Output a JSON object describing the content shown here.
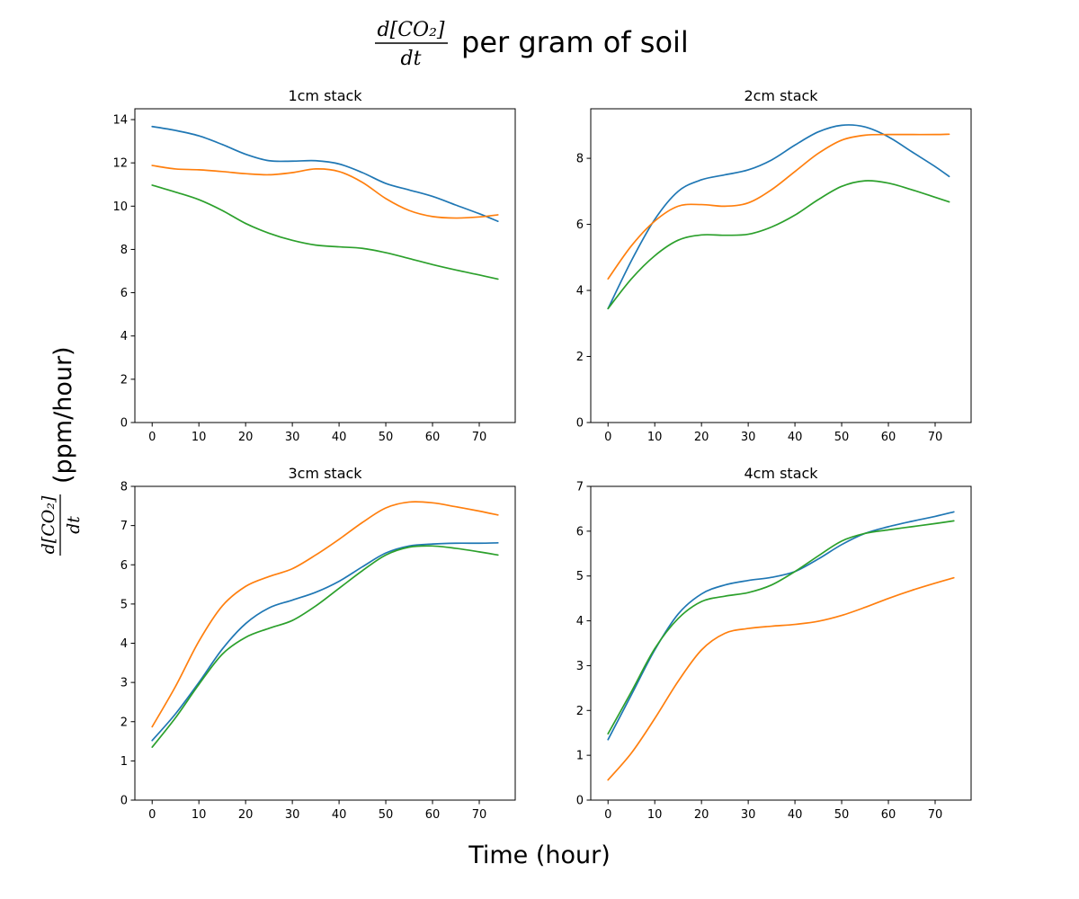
{
  "figure": {
    "suptitle": {
      "frac_numerator": "d[CO₂]",
      "frac_denominator": "dt",
      "text": "per gram of soil"
    },
    "supxlabel": "Time (hour)",
    "supylabel": {
      "frac_numerator": "d[CO₂]",
      "frac_denominator": "dt",
      "text": "(ppm/hour)"
    }
  },
  "chart_data": [
    {
      "type": "line",
      "title": "1cm stack",
      "xlabel": "",
      "ylabel": "",
      "xlim": [
        -3.7,
        77.7
      ],
      "ylim": [
        0,
        14.5
      ],
      "xticks": [
        0,
        10,
        20,
        30,
        40,
        50,
        60,
        70
      ],
      "yticks": [
        0,
        2,
        4,
        6,
        8,
        10,
        12,
        14
      ],
      "grid": false,
      "series": [
        {
          "color": "#1f77b4",
          "x": [
            0,
            5,
            10,
            15,
            20,
            25,
            30,
            35,
            40,
            45,
            50,
            55,
            60,
            65,
            70,
            74
          ],
          "values": [
            13.68,
            13.5,
            13.25,
            12.85,
            12.4,
            12.1,
            12.08,
            12.1,
            11.95,
            11.55,
            11.05,
            10.75,
            10.45,
            10.05,
            9.65,
            9.3
          ]
        },
        {
          "color": "#ff7f0e",
          "x": [
            0,
            5,
            10,
            15,
            20,
            25,
            30,
            35,
            40,
            45,
            50,
            55,
            60,
            65,
            70,
            74
          ],
          "values": [
            11.88,
            11.72,
            11.68,
            11.6,
            11.5,
            11.45,
            11.55,
            11.72,
            11.6,
            11.1,
            10.35,
            9.8,
            9.52,
            9.45,
            9.5,
            9.6
          ]
        },
        {
          "color": "#2ca02c",
          "x": [
            0,
            5,
            10,
            15,
            20,
            25,
            30,
            35,
            40,
            45,
            50,
            55,
            60,
            65,
            70,
            74
          ],
          "values": [
            10.97,
            10.65,
            10.3,
            9.8,
            9.2,
            8.75,
            8.42,
            8.2,
            8.12,
            8.05,
            7.85,
            7.58,
            7.3,
            7.05,
            6.82,
            6.63
          ]
        }
      ]
    },
    {
      "type": "line",
      "title": "2cm stack",
      "xlabel": "",
      "ylabel": "",
      "xlim": [
        -3.7,
        77.7
      ],
      "ylim": [
        0,
        9.5
      ],
      "xticks": [
        0,
        10,
        20,
        30,
        40,
        50,
        60,
        70
      ],
      "yticks": [
        0,
        2,
        4,
        6,
        8
      ],
      "grid": false,
      "series": [
        {
          "color": "#1f77b4",
          "x": [
            0,
            5,
            10,
            15,
            20,
            25,
            30,
            35,
            40,
            45,
            50,
            55,
            60,
            65,
            70,
            73
          ],
          "values": [
            3.45,
            4.9,
            6.15,
            7.0,
            7.35,
            7.5,
            7.65,
            7.95,
            8.4,
            8.8,
            9.0,
            8.95,
            8.65,
            8.2,
            7.75,
            7.45
          ]
        },
        {
          "color": "#ff7f0e",
          "x": [
            0,
            5,
            10,
            15,
            20,
            25,
            30,
            35,
            40,
            45,
            50,
            55,
            60,
            65,
            70,
            73
          ],
          "values": [
            4.35,
            5.35,
            6.1,
            6.55,
            6.6,
            6.55,
            6.65,
            7.05,
            7.6,
            8.15,
            8.55,
            8.7,
            8.72,
            8.72,
            8.72,
            8.73
          ]
        },
        {
          "color": "#2ca02c",
          "x": [
            0,
            5,
            10,
            15,
            20,
            25,
            30,
            35,
            40,
            45,
            50,
            55,
            60,
            65,
            70,
            73
          ],
          "values": [
            3.45,
            4.35,
            5.05,
            5.52,
            5.68,
            5.67,
            5.7,
            5.92,
            6.28,
            6.75,
            7.15,
            7.32,
            7.25,
            7.05,
            6.82,
            6.68
          ]
        }
      ]
    },
    {
      "type": "line",
      "title": "3cm stack",
      "xlabel": "",
      "ylabel": "",
      "xlim": [
        -3.7,
        77.7
      ],
      "ylim": [
        0,
        8
      ],
      "xticks": [
        0,
        10,
        20,
        30,
        40,
        50,
        60,
        70
      ],
      "yticks": [
        0,
        1,
        2,
        3,
        4,
        5,
        6,
        7,
        8
      ],
      "grid": false,
      "series": [
        {
          "color": "#1f77b4",
          "x": [
            0,
            5,
            10,
            15,
            20,
            25,
            30,
            35,
            40,
            45,
            50,
            55,
            60,
            65,
            70,
            74
          ],
          "values": [
            1.52,
            2.2,
            3.0,
            3.85,
            4.5,
            4.9,
            5.1,
            5.3,
            5.58,
            5.95,
            6.3,
            6.48,
            6.53,
            6.55,
            6.55,
            6.56
          ]
        },
        {
          "color": "#ff7f0e",
          "x": [
            0,
            5,
            10,
            15,
            20,
            25,
            30,
            35,
            40,
            45,
            50,
            55,
            60,
            65,
            70,
            74
          ],
          "values": [
            1.87,
            2.9,
            4.05,
            4.95,
            5.45,
            5.7,
            5.9,
            6.25,
            6.65,
            7.08,
            7.45,
            7.6,
            7.58,
            7.48,
            7.37,
            7.27
          ]
        },
        {
          "color": "#2ca02c",
          "x": [
            0,
            5,
            10,
            15,
            20,
            25,
            30,
            35,
            40,
            45,
            50,
            55,
            60,
            65,
            70,
            74
          ],
          "values": [
            1.35,
            2.1,
            2.95,
            3.72,
            4.15,
            4.38,
            4.58,
            4.95,
            5.4,
            5.85,
            6.25,
            6.45,
            6.48,
            6.42,
            6.33,
            6.25
          ]
        }
      ]
    },
    {
      "type": "line",
      "title": "4cm stack",
      "xlabel": "",
      "ylabel": "",
      "xlim": [
        -3.7,
        77.7
      ],
      "ylim": [
        0,
        7
      ],
      "xticks": [
        0,
        10,
        20,
        30,
        40,
        50,
        60,
        70
      ],
      "yticks": [
        0,
        1,
        2,
        3,
        4,
        5,
        6,
        7
      ],
      "grid": false,
      "series": [
        {
          "color": "#1f77b4",
          "x": [
            0,
            5,
            10,
            15,
            20,
            25,
            30,
            35,
            40,
            45,
            50,
            55,
            60,
            65,
            70,
            74
          ],
          "values": [
            1.35,
            2.35,
            3.35,
            4.15,
            4.6,
            4.8,
            4.9,
            4.97,
            5.1,
            5.38,
            5.7,
            5.95,
            6.1,
            6.22,
            6.33,
            6.43
          ]
        },
        {
          "color": "#ff7f0e",
          "x": [
            0,
            5,
            10,
            15,
            20,
            25,
            30,
            35,
            40,
            45,
            50,
            55,
            60,
            65,
            70,
            74
          ],
          "values": [
            0.45,
            1.05,
            1.82,
            2.65,
            3.35,
            3.72,
            3.83,
            3.88,
            3.92,
            3.99,
            4.12,
            4.3,
            4.5,
            4.68,
            4.84,
            4.96
          ]
        },
        {
          "color": "#2ca02c",
          "x": [
            0,
            5,
            10,
            15,
            20,
            25,
            30,
            35,
            40,
            45,
            50,
            55,
            60,
            65,
            70,
            74
          ],
          "values": [
            1.48,
            2.42,
            3.38,
            4.05,
            4.43,
            4.55,
            4.63,
            4.8,
            5.1,
            5.45,
            5.78,
            5.95,
            6.03,
            6.1,
            6.17,
            6.23
          ]
        }
      ]
    }
  ]
}
